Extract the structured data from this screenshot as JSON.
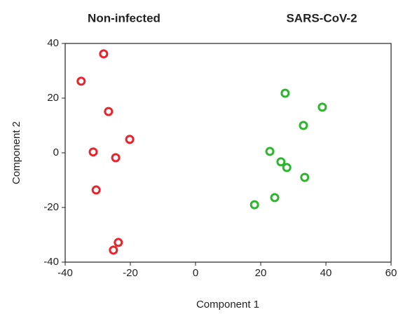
{
  "chart_data": {
    "type": "scatter",
    "xlabel": "Component 1",
    "ylabel": "Component 2",
    "xlim": [
      -40,
      60
    ],
    "ylim": [
      -40,
      40
    ],
    "xticks": [
      -40,
      -20,
      0,
      20,
      40,
      60
    ],
    "yticks": [
      -40,
      -20,
      0,
      20,
      40
    ],
    "series": [
      {
        "name": "Non-infected",
        "color": "#e8232b",
        "x": [
          -28.2,
          -35.1,
          -26.7,
          -20.2,
          -31.4,
          -24.5,
          -30.5,
          -23.7,
          -25.2
        ],
        "values": [
          36.2,
          26.2,
          15.1,
          4.9,
          0.3,
          -1.8,
          -13.6,
          -32.8,
          -35.6
        ]
      },
      {
        "name": "SARS-CoV-2",
        "color": "#2db52d",
        "x": [
          27.5,
          38.9,
          33.1,
          22.8,
          26.2,
          28,
          33.5,
          24.3,
          18.1
        ],
        "values": [
          21.8,
          16.7,
          10,
          0.5,
          -3.3,
          -5.4,
          -9,
          -16.4,
          -19
        ]
      }
    ]
  }
}
